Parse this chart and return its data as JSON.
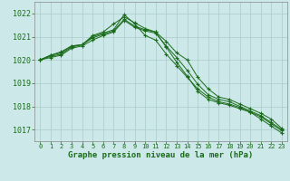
{
  "hours": [
    0,
    1,
    2,
    3,
    4,
    5,
    6,
    7,
    8,
    9,
    10,
    11,
    12,
    13,
    14,
    15,
    16,
    17,
    18,
    19,
    20,
    21,
    22,
    23
  ],
  "series": [
    [
      1020.0,
      1020.2,
      1020.3,
      1020.6,
      1020.65,
      1021.05,
      1021.2,
      1021.55,
      1021.85,
      1021.6,
      1021.35,
      1021.2,
      1020.55,
      1019.9,
      1019.3,
      1018.65,
      1018.3,
      1018.15,
      1018.05,
      1017.9,
      1017.75,
      1017.55,
      1017.25,
      1016.95
    ],
    [
      1020.0,
      1020.2,
      1020.35,
      1020.6,
      1020.65,
      1021.0,
      1021.15,
      1021.3,
      1021.95,
      1021.55,
      1021.05,
      1020.85,
      1020.25,
      1019.75,
      1019.25,
      1018.75,
      1018.4,
      1018.2,
      1018.1,
      1017.95,
      1017.75,
      1017.45,
      1017.15,
      1016.85
    ],
    [
      1020.0,
      1020.15,
      1020.25,
      1020.55,
      1020.65,
      1020.95,
      1021.1,
      1021.25,
      1021.75,
      1021.45,
      1021.3,
      1021.2,
      1020.8,
      1020.3,
      1020.0,
      1019.25,
      1018.75,
      1018.4,
      1018.3,
      1018.1,
      1017.9,
      1017.7,
      1017.45,
      1017.05
    ],
    [
      1020.0,
      1020.1,
      1020.2,
      1020.5,
      1020.6,
      1020.85,
      1021.05,
      1021.2,
      1021.7,
      1021.4,
      1021.25,
      1021.15,
      1020.6,
      1020.1,
      1019.55,
      1018.95,
      1018.5,
      1018.3,
      1018.2,
      1018.0,
      1017.8,
      1017.6,
      1017.3,
      1017.0
    ]
  ],
  "line_color": "#1a6b1a",
  "marker_color": "#1a6b1a",
  "bg_color": "#cce8e8",
  "grid_color": "#aacccc",
  "xlabel": "Graphe pression niveau de la mer (hPa)",
  "xlabel_color": "#1a6b1a",
  "tick_color": "#1a6b1a",
  "ylim": [
    1016.5,
    1022.5
  ],
  "yticks": [
    1017,
    1018,
    1019,
    1020,
    1021,
    1022
  ],
  "xlim": [
    -0.5,
    23.5
  ],
  "xticks": [
    0,
    1,
    2,
    3,
    4,
    5,
    6,
    7,
    8,
    9,
    10,
    11,
    12,
    13,
    14,
    15,
    16,
    17,
    18,
    19,
    20,
    21,
    22,
    23
  ]
}
